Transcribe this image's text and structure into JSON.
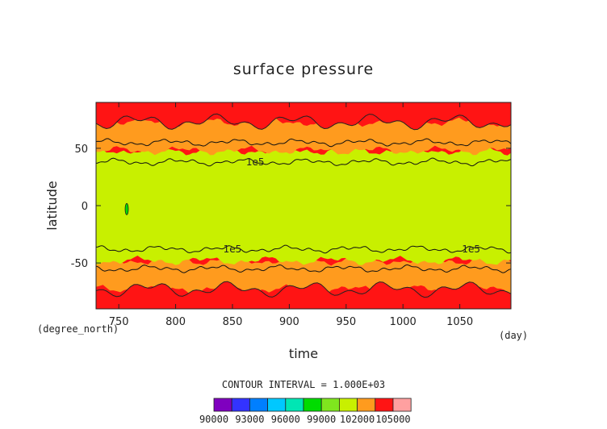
{
  "chart_data": {
    "type": "heatmap",
    "title": "surface pressure",
    "xlabel": "time",
    "ylabel": "latitude",
    "x_unit": "(day)",
    "y_unit": "(degree_north)",
    "xlim": [
      730,
      1095
    ],
    "ylim": [
      -90,
      90
    ],
    "x_ticks": [
      750,
      800,
      850,
      900,
      950,
      1000,
      1050
    ],
    "y_ticks": [
      -50,
      0,
      50
    ],
    "contour_interval_text": "CONTOUR INTERVAL = 1.000E+03",
    "contour_labels": [
      {
        "text": "1e5",
        "x": 870,
        "y": 38
      },
      {
        "text": "1e5",
        "x": 850,
        "y": -38
      },
      {
        "text": "1e5",
        "x": 1060,
        "y": -38
      }
    ],
    "colorbar": {
      "colors": [
        "#7f00bf",
        "#3333ff",
        "#007fff",
        "#00c8ff",
        "#00e6b4",
        "#00dc00",
        "#7fe61e",
        "#c8f000",
        "#ff9b1e",
        "#ff1414",
        "#ffa0a0"
      ],
      "tick_labels": [
        "90000",
        "93000",
        "96000",
        "99000",
        "102000",
        "105000"
      ]
    },
    "bands": [
      {
        "lat_from": -90,
        "lat_to": -73,
        "value": 102500,
        "color": "#ff1414"
      },
      {
        "lat_from": -73,
        "lat_to": -48,
        "value": 101500,
        "color": "#ff9b1e"
      },
      {
        "lat_from": -48,
        "lat_to": 48,
        "value": 100500,
        "color": "#c8f000"
      },
      {
        "lat_from": 48,
        "lat_to": 73,
        "value": 101500,
        "color": "#ff9b1e"
      },
      {
        "lat_from": 73,
        "lat_to": 90,
        "value": 102500,
        "color": "#ff1414"
      }
    ]
  }
}
